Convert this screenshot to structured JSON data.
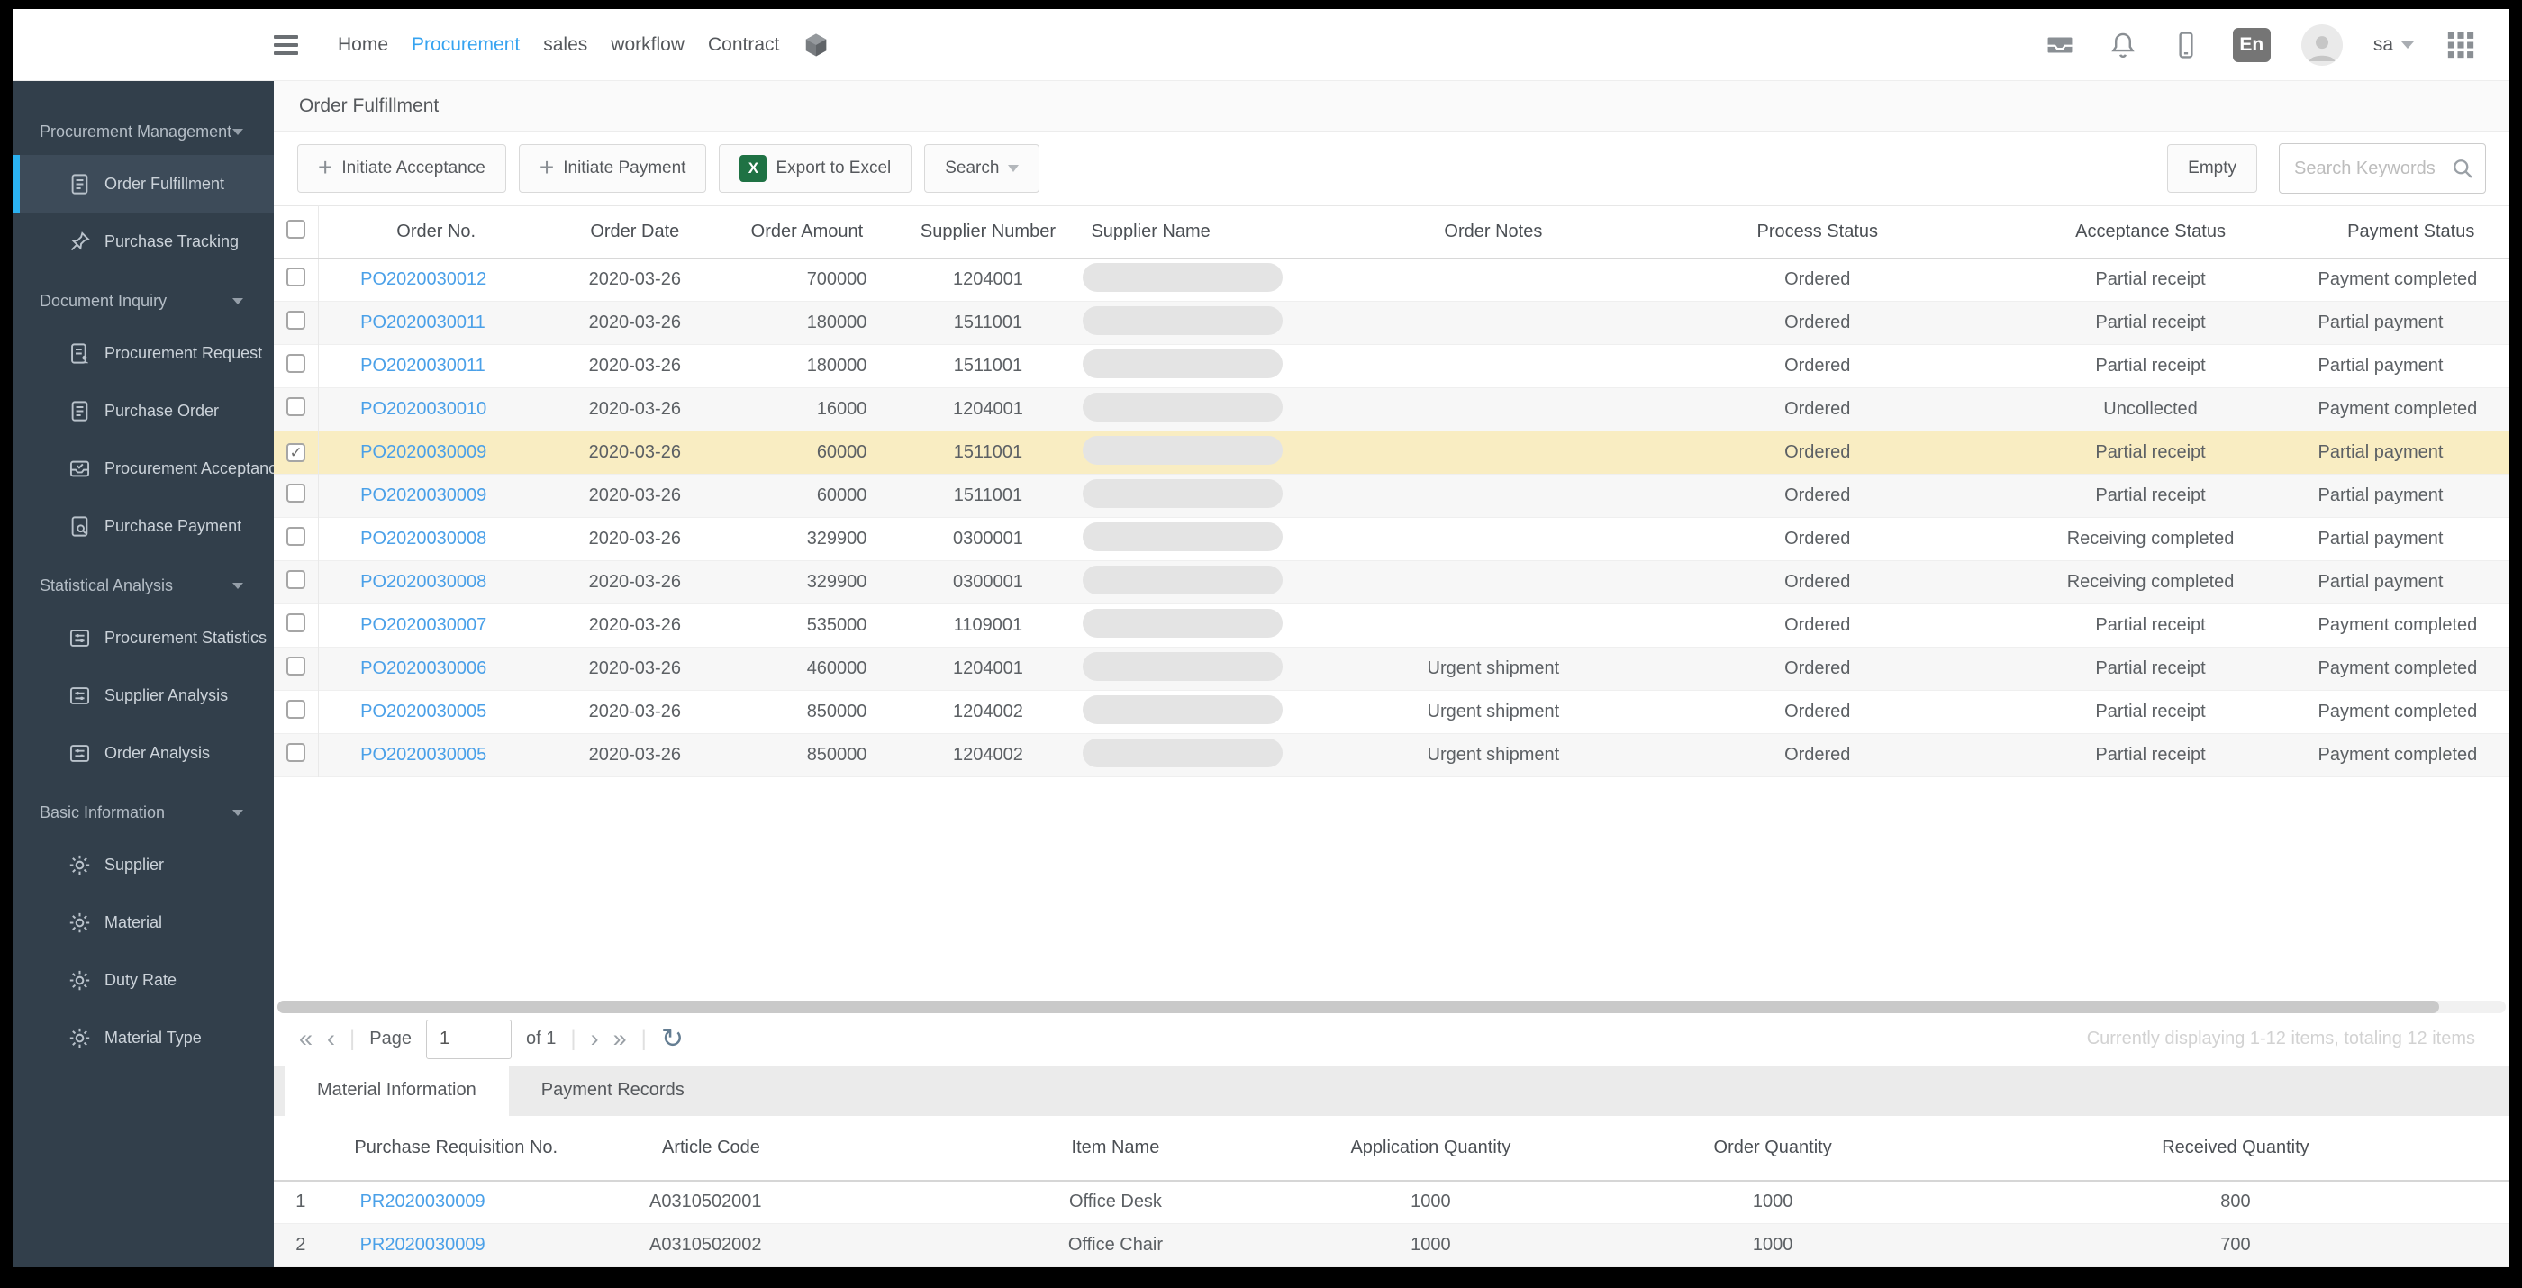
{
  "navbar": {
    "menu_icon": "menu-icon",
    "links": [
      {
        "label": "Home",
        "active": false
      },
      {
        "label": "Procurement",
        "active": true
      },
      {
        "label": "sales",
        "active": false
      },
      {
        "label": "workflow",
        "active": false
      },
      {
        "label": "Contract",
        "active": false,
        "icon": "package-icon"
      }
    ],
    "right": {
      "icons": [
        "inbox-icon",
        "bell-icon",
        "mobile-icon"
      ],
      "language_badge": "En",
      "username": "sa"
    }
  },
  "sidebar": {
    "sections": [
      {
        "label": "Procurement Management",
        "items": [
          {
            "label": "Order Fulfillment",
            "icon": "doc-lines",
            "active": true
          },
          {
            "label": "Purchase Tracking",
            "icon": "pin",
            "active": false
          }
        ]
      },
      {
        "label": "Document Inquiry",
        "items": [
          {
            "label": "Procurement Request",
            "icon": "doc-person",
            "active": false
          },
          {
            "label": "Purchase Order",
            "icon": "doc-lines",
            "active": false
          },
          {
            "label": "Procurement Acceptance",
            "icon": "tray-check",
            "active": false
          },
          {
            "label": "Purchase Payment",
            "icon": "doc-search",
            "active": false
          }
        ]
      },
      {
        "label": "Statistical Analysis",
        "items": [
          {
            "label": "Procurement Statistics",
            "icon": "list-settings",
            "active": false
          },
          {
            "label": "Supplier Analysis",
            "icon": "list-settings",
            "active": false
          },
          {
            "label": "Order Analysis",
            "icon": "list-settings",
            "active": false
          }
        ]
      },
      {
        "label": "Basic Information",
        "items": [
          {
            "label": "Supplier",
            "icon": "gear",
            "active": false
          },
          {
            "label": "Material",
            "icon": "gear",
            "active": false
          },
          {
            "label": "Duty Rate",
            "icon": "gear",
            "active": false
          },
          {
            "label": "Material Type",
            "icon": "gear",
            "active": false
          }
        ]
      }
    ]
  },
  "page": {
    "title": "Order Fulfillment"
  },
  "toolbar": {
    "buttons": [
      {
        "label": "Initiate Acceptance",
        "icon": "plus-icon"
      },
      {
        "label": "Initiate Payment",
        "icon": "plus-icon"
      },
      {
        "label": "Export to Excel",
        "icon": "excel-icon"
      },
      {
        "label": "Search",
        "icon": "caret-down-icon"
      }
    ],
    "empty_button": "Empty",
    "search_placeholder": "Search Keywords"
  },
  "orders": {
    "columns": [
      "",
      "Order No.",
      "Order Date",
      "Order Amount",
      "Supplier Number",
      "Supplier Name",
      "Order Notes",
      "Process Status",
      "Acceptance Status",
      "Payment Status"
    ],
    "rows": [
      {
        "order_no": "PO2020030012",
        "order_date": "2020-03-26",
        "order_amount": "700000",
        "supplier_number": "1204001",
        "supplier_name_redacted": true,
        "order_notes": "",
        "process_status": "Ordered",
        "acceptance_status": "Partial receipt",
        "payment_status": "Payment completed",
        "checked": false,
        "selected": false
      },
      {
        "order_no": "PO2020030011",
        "order_date": "2020-03-26",
        "order_amount": "180000",
        "supplier_number": "1511001",
        "supplier_name_redacted": true,
        "order_notes": "",
        "process_status": "Ordered",
        "acceptance_status": "Partial receipt",
        "payment_status": "Partial payment",
        "checked": false,
        "selected": false
      },
      {
        "order_no": "PO2020030011",
        "order_date": "2020-03-26",
        "order_amount": "180000",
        "supplier_number": "1511001",
        "supplier_name_redacted": true,
        "order_notes": "",
        "process_status": "Ordered",
        "acceptance_status": "Partial receipt",
        "payment_status": "Partial payment",
        "checked": false,
        "selected": false
      },
      {
        "order_no": "PO2020030010",
        "order_date": "2020-03-26",
        "order_amount": "16000",
        "supplier_number": "1204001",
        "supplier_name_redacted": true,
        "order_notes": "",
        "process_status": "Ordered",
        "acceptance_status": "Uncollected",
        "payment_status": "Payment completed",
        "checked": false,
        "selected": false
      },
      {
        "order_no": "PO2020030009",
        "order_date": "2020-03-26",
        "order_amount": "60000",
        "supplier_number": "1511001",
        "supplier_name_redacted": true,
        "order_notes": "",
        "process_status": "Ordered",
        "acceptance_status": "Partial receipt",
        "payment_status": "Partial payment",
        "checked": true,
        "selected": true
      },
      {
        "order_no": "PO2020030009",
        "order_date": "2020-03-26",
        "order_amount": "60000",
        "supplier_number": "1511001",
        "supplier_name_redacted": true,
        "order_notes": "",
        "process_status": "Ordered",
        "acceptance_status": "Partial receipt",
        "payment_status": "Partial payment",
        "checked": false,
        "selected": false
      },
      {
        "order_no": "PO2020030008",
        "order_date": "2020-03-26",
        "order_amount": "329900",
        "supplier_number": "0300001",
        "supplier_name_redacted": true,
        "order_notes": "",
        "process_status": "Ordered",
        "acceptance_status": "Receiving completed",
        "payment_status": "Partial payment",
        "checked": false,
        "selected": false
      },
      {
        "order_no": "PO2020030008",
        "order_date": "2020-03-26",
        "order_amount": "329900",
        "supplier_number": "0300001",
        "supplier_name_redacted": true,
        "order_notes": "",
        "process_status": "Ordered",
        "acceptance_status": "Receiving completed",
        "payment_status": "Partial payment",
        "checked": false,
        "selected": false
      },
      {
        "order_no": "PO2020030007",
        "order_date": "2020-03-26",
        "order_amount": "535000",
        "supplier_number": "1109001",
        "supplier_name_redacted": true,
        "order_notes": "",
        "process_status": "Ordered",
        "acceptance_status": "Partial receipt",
        "payment_status": "Payment completed",
        "checked": false,
        "selected": false
      },
      {
        "order_no": "PO2020030006",
        "order_date": "2020-03-26",
        "order_amount": "460000",
        "supplier_number": "1204001",
        "supplier_name_redacted": true,
        "order_notes": "Urgent shipment",
        "process_status": "Ordered",
        "acceptance_status": "Partial receipt",
        "payment_status": "Payment completed",
        "checked": false,
        "selected": false
      },
      {
        "order_no": "PO2020030005",
        "order_date": "2020-03-26",
        "order_amount": "850000",
        "supplier_number": "1204002",
        "supplier_name_redacted": true,
        "order_notes": "Urgent shipment",
        "process_status": "Ordered",
        "acceptance_status": "Partial receipt",
        "payment_status": "Payment completed",
        "checked": false,
        "selected": false
      },
      {
        "order_no": "PO2020030005",
        "order_date": "2020-03-26",
        "order_amount": "850000",
        "supplier_number": "1204002",
        "supplier_name_redacted": true,
        "order_notes": "Urgent shipment",
        "process_status": "Ordered",
        "acceptance_status": "Partial receipt",
        "payment_status": "Payment completed",
        "checked": false,
        "selected": false
      }
    ]
  },
  "pagination": {
    "page_label": "Page",
    "page_value": "1",
    "of_label": "of 1",
    "icons": [
      "first-page-icon",
      "prev-page-icon",
      "next-page-icon",
      "last-page-icon",
      "refresh-icon"
    ],
    "summary": "Currently displaying 1-12 items, totaling 12 items"
  },
  "detail_tabs": [
    {
      "label": "Material Information",
      "active": true
    },
    {
      "label": "Payment Records",
      "active": false
    }
  ],
  "materials": {
    "columns": [
      "",
      "Purchase Requisition No.",
      "Article Code",
      "Item Name",
      "Application Quantity",
      "Order Quantity",
      "Received Quantity"
    ],
    "rows": [
      {
        "index": "1",
        "requisition_no": "PR2020030009",
        "article_code": "A0310502001",
        "item_name": "Office Desk",
        "application_qty": "1000",
        "order_qty": "1000",
        "received_qty": "800"
      },
      {
        "index": "2",
        "requisition_no": "PR2020030009",
        "article_code": "A0310502002",
        "item_name": "Office Chair",
        "application_qty": "1000",
        "order_qty": "1000",
        "received_qty": "700"
      }
    ]
  },
  "colors": {
    "accent_blue": "#36a3f0",
    "link_blue": "#4aa0e8",
    "sidebar_bg": "#323f4b",
    "sidebar_active_bg": "#3d4b59",
    "sidebar_active_bar": "#2bb2f2",
    "selected_row_bg": "#f9edc2",
    "row_stripe": "#f7f7f7",
    "excel_green": "#1f7244"
  }
}
